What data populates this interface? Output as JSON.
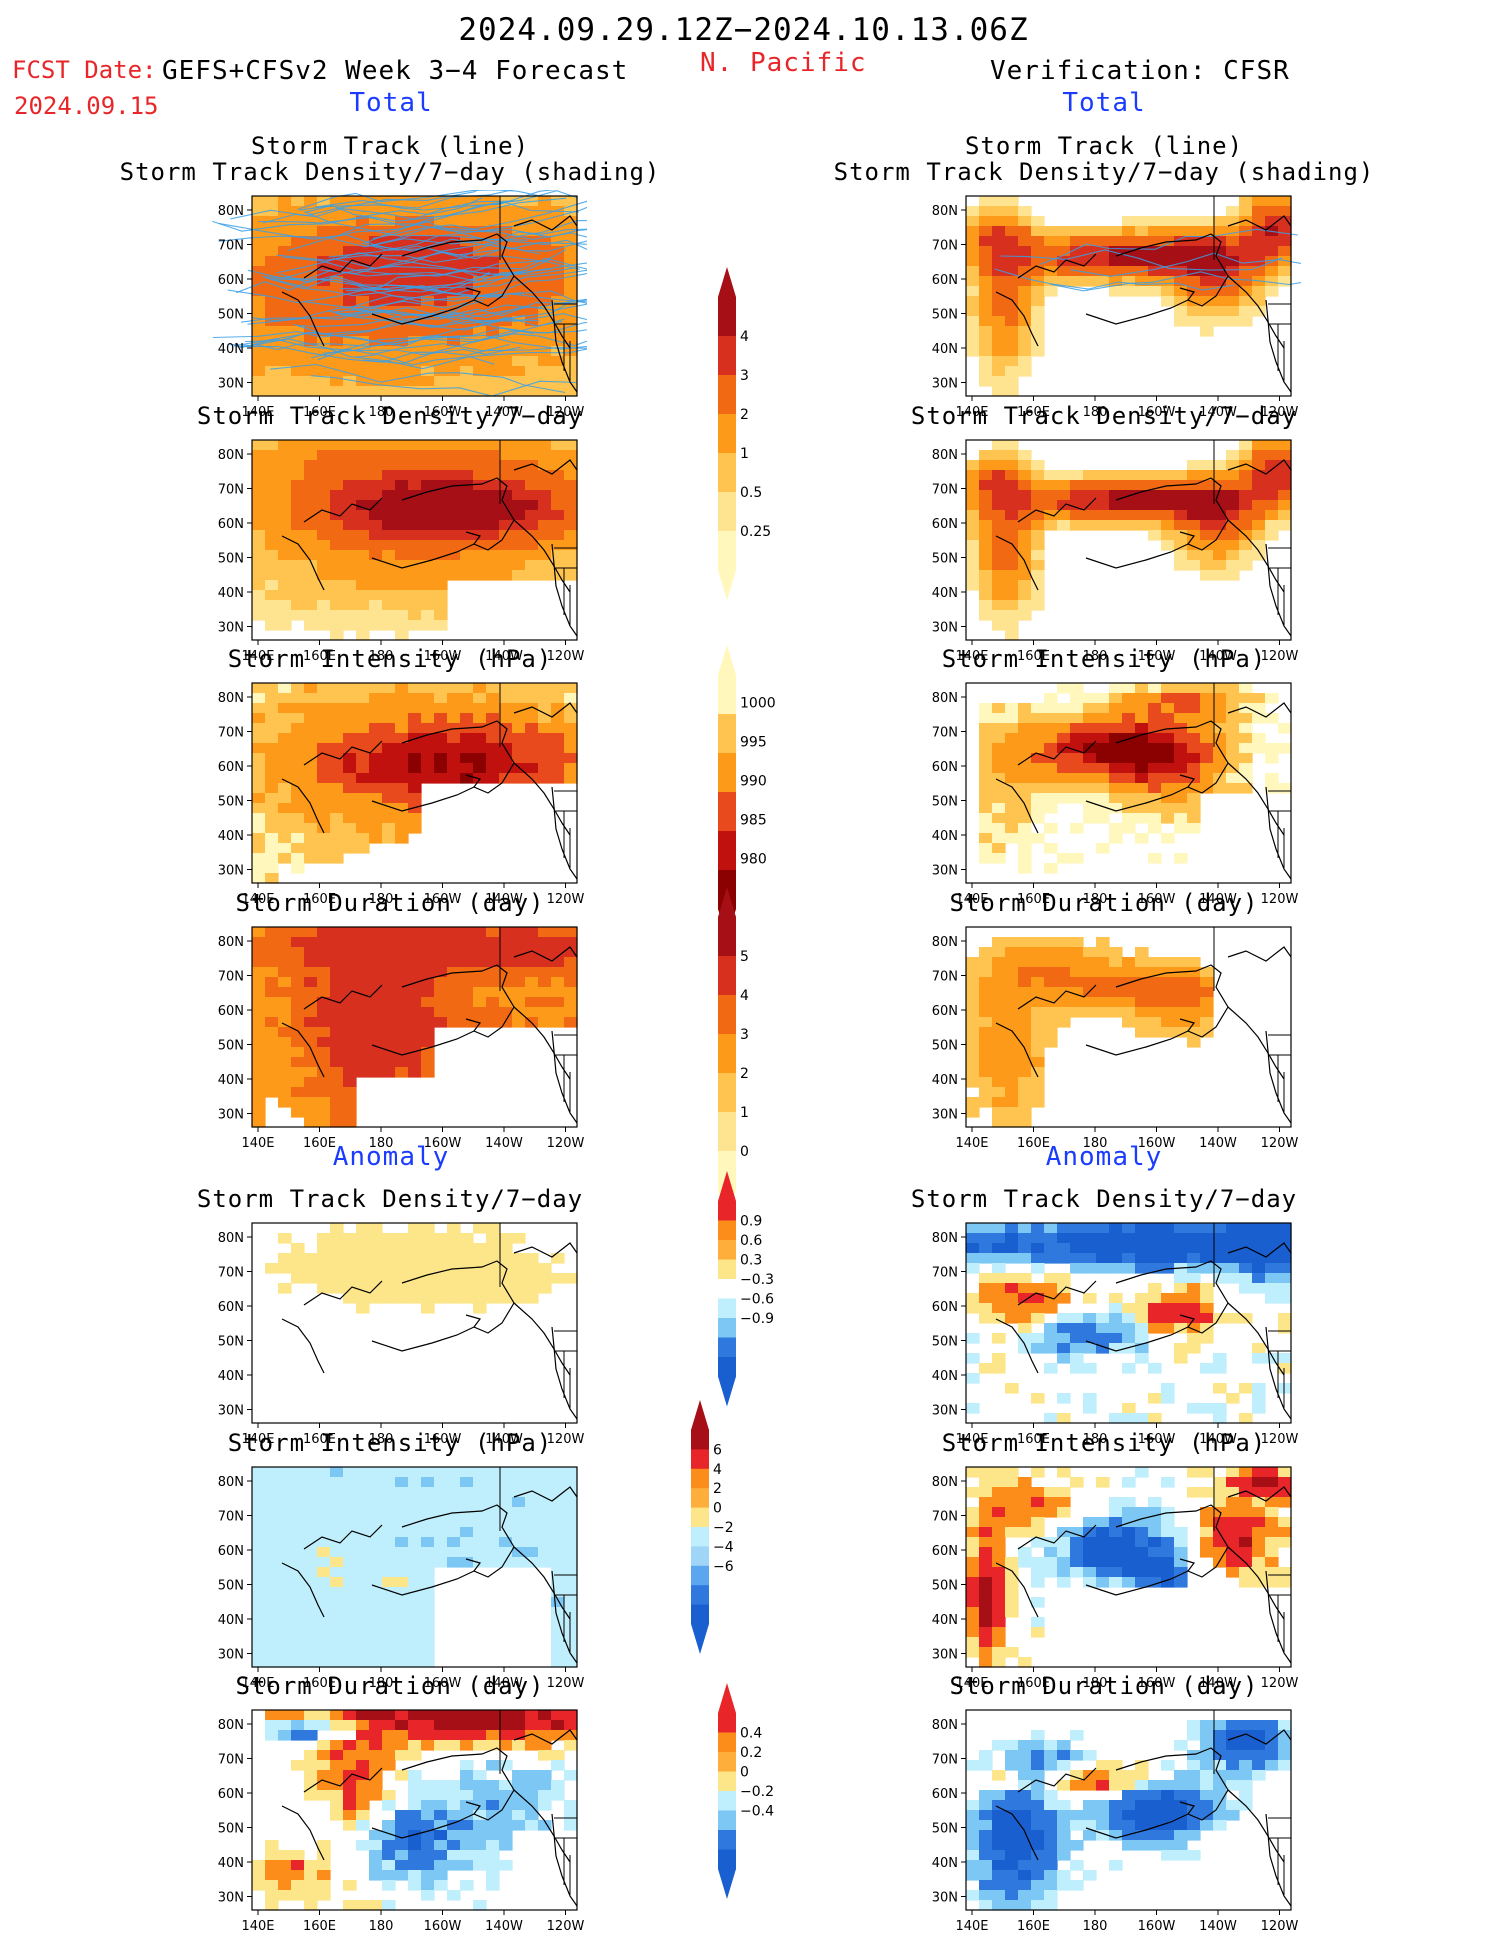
{
  "header": {
    "title": "2024.09.29.12Z−2024.10.13.06Z",
    "fcst_date_label": "FCST Date:",
    "fcst_date": "2024.09.15",
    "model": "GEFS+CFSv2 Week 3−4 Forecast",
    "region": "N. Pacific",
    "verification": "Verification: CFSR"
  },
  "sections": {
    "total_left": "Total",
    "total_right": "Total",
    "anomaly_left": "Anomaly",
    "anomaly_right": "Anomaly"
  },
  "axes": {
    "lon_labels": [
      "140E",
      "160E",
      "180",
      "160W",
      "140W",
      "120W"
    ],
    "lat_labels": [
      "80N",
      "70N",
      "60N",
      "50N",
      "40N",
      "30N"
    ]
  },
  "panels": {
    "track_l1": "Storm Track (line)",
    "track_l2": "Storm Track Density/7−day (shading)",
    "density": "Storm Track Density/7−day",
    "intensity": "Storm Intensity (hPa)",
    "duration": "Storm Duration (day)"
  },
  "colorbars": {
    "density_total": {
      "labels": [
        "4",
        "3",
        "2",
        "1",
        "0.5",
        "0.25"
      ],
      "colors": [
        "#a50f15",
        "#d7301f",
        "#f16913",
        "#fd9a1a",
        "#fec44f",
        "#fee391",
        "#fff7bc"
      ]
    },
    "intensity_total": {
      "labels": [
        "1000",
        "995",
        "990",
        "985",
        "980"
      ],
      "colors": [
        "#fff7bc",
        "#fec44f",
        "#fd9a1a",
        "#e8491d",
        "#c0110f",
        "#8b0000"
      ]
    },
    "duration_total": {
      "labels": [
        "5",
        "4",
        "3",
        "2",
        "1",
        "0"
      ],
      "colors": [
        "#a50f15",
        "#d7301f",
        "#f16913",
        "#fd9a1a",
        "#fec44f",
        "#fee391",
        "#fff7bc"
      ]
    },
    "density_anom": {
      "labels": [
        "0.9",
        "0.6",
        "0.3",
        "−0.3",
        "−0.6",
        "−0.9"
      ],
      "colors": [
        "#e8262a",
        "#fd8d1a",
        "#fdae3b",
        "#fde68a",
        "#ffffff",
        "#bfeefc",
        "#7dc7f5",
        "#2f78dd",
        "#1a5fd0"
      ]
    },
    "intensity_anom": {
      "labels": [
        "6",
        "4",
        "2",
        "0",
        "−2",
        "−4",
        "−6"
      ],
      "colors": [
        "#a50f15",
        "#e8262a",
        "#fd8d1a",
        "#fdae3b",
        "#fde68a",
        "#bfeefc",
        "#9fd6f8",
        "#5ba6ee",
        "#2f78dd",
        "#1a5fd0"
      ]
    },
    "duration_anom": {
      "labels": [
        "0.4",
        "0.2",
        "0",
        "−0.2",
        "−0.4"
      ],
      "colors": [
        "#e8262a",
        "#fd8d1a",
        "#fdae3b",
        "#fde68a",
        "#bfeefc",
        "#7dc7f5",
        "#2f78dd",
        "#1a5fd0"
      ]
    }
  },
  "palette": {
    "frame": "#000000",
    "empty": "#ffffff",
    "coast": "#000000",
    "track_line": "#3aa0e8",
    "track_core": "#8b1a6b"
  }
}
